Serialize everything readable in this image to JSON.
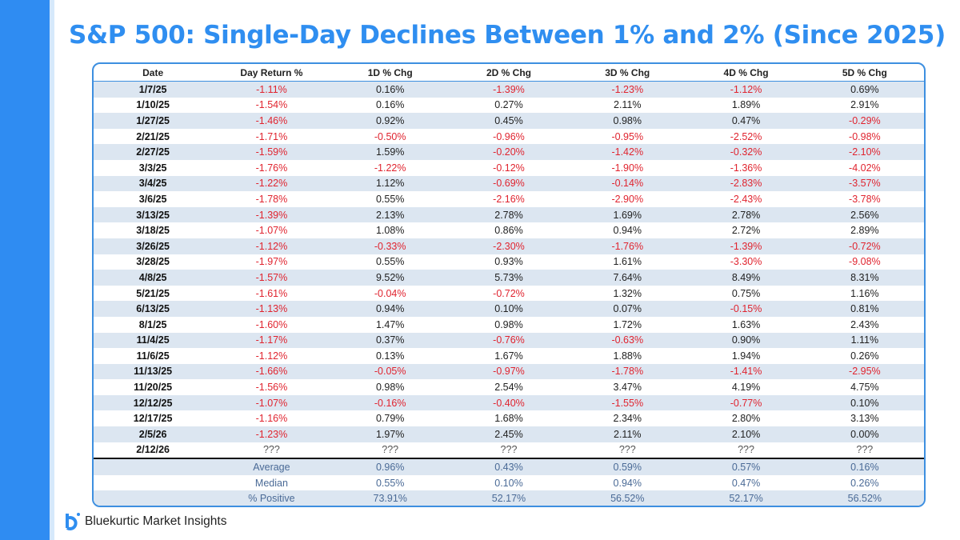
{
  "title": "S&P 500: Single-Day Declines Between 1% and 2% (Since 2025)",
  "brand": "Bluekurtic Market Insights",
  "colors": {
    "accent": "#2f8ef0",
    "negative": "#e0242f",
    "stripe": "#dce6f1",
    "summary": "#4a6a96"
  },
  "chart_data": {
    "type": "table",
    "columns": [
      "Date",
      "Day Return %",
      "1D % Chg",
      "2D % Chg",
      "3D % Chg",
      "4D % Chg",
      "5D % Chg"
    ],
    "rows": [
      [
        "1/7/25",
        "-1.11%",
        "0.16%",
        "-1.39%",
        "-1.23%",
        "-1.12%",
        "0.69%"
      ],
      [
        "1/10/25",
        "-1.54%",
        "0.16%",
        "0.27%",
        "2.11%",
        "1.89%",
        "2.91%"
      ],
      [
        "1/27/25",
        "-1.46%",
        "0.92%",
        "0.45%",
        "0.98%",
        "0.47%",
        "-0.29%"
      ],
      [
        "2/21/25",
        "-1.71%",
        "-0.50%",
        "-0.96%",
        "-0.95%",
        "-2.52%",
        "-0.98%"
      ],
      [
        "2/27/25",
        "-1.59%",
        "1.59%",
        "-0.20%",
        "-1.42%",
        "-0.32%",
        "-2.10%"
      ],
      [
        "3/3/25",
        "-1.76%",
        "-1.22%",
        "-0.12%",
        "-1.90%",
        "-1.36%",
        "-4.02%"
      ],
      [
        "3/4/25",
        "-1.22%",
        "1.12%",
        "-0.69%",
        "-0.14%",
        "-2.83%",
        "-3.57%"
      ],
      [
        "3/6/25",
        "-1.78%",
        "0.55%",
        "-2.16%",
        "-2.90%",
        "-2.43%",
        "-3.78%"
      ],
      [
        "3/13/25",
        "-1.39%",
        "2.13%",
        "2.78%",
        "1.69%",
        "2.78%",
        "2.56%"
      ],
      [
        "3/18/25",
        "-1.07%",
        "1.08%",
        "0.86%",
        "0.94%",
        "2.72%",
        "2.89%"
      ],
      [
        "3/26/25",
        "-1.12%",
        "-0.33%",
        "-2.30%",
        "-1.76%",
        "-1.39%",
        "-0.72%"
      ],
      [
        "3/28/25",
        "-1.97%",
        "0.55%",
        "0.93%",
        "1.61%",
        "-3.30%",
        "-9.08%"
      ],
      [
        "4/8/25",
        "-1.57%",
        "9.52%",
        "5.73%",
        "7.64%",
        "8.49%",
        "8.31%"
      ],
      [
        "5/21/25",
        "-1.61%",
        "-0.04%",
        "-0.72%",
        "1.32%",
        "0.75%",
        "1.16%"
      ],
      [
        "6/13/25",
        "-1.13%",
        "0.94%",
        "0.10%",
        "0.07%",
        "-0.15%",
        "0.81%"
      ],
      [
        "8/1/25",
        "-1.60%",
        "1.47%",
        "0.98%",
        "1.72%",
        "1.63%",
        "2.43%"
      ],
      [
        "11/4/25",
        "-1.17%",
        "0.37%",
        "-0.76%",
        "-0.63%",
        "0.90%",
        "1.11%"
      ],
      [
        "11/6/25",
        "-1.12%",
        "0.13%",
        "1.67%",
        "1.88%",
        "1.94%",
        "0.26%"
      ],
      [
        "11/13/25",
        "-1.66%",
        "-0.05%",
        "-0.97%",
        "-1.78%",
        "-1.41%",
        "-2.95%"
      ],
      [
        "11/20/25",
        "-1.56%",
        "0.98%",
        "2.54%",
        "3.47%",
        "4.19%",
        "4.75%"
      ],
      [
        "12/12/25",
        "-1.07%",
        "-0.16%",
        "-0.40%",
        "-1.55%",
        "-0.77%",
        "0.10%"
      ],
      [
        "12/17/25",
        "-1.16%",
        "0.79%",
        "1.68%",
        "2.34%",
        "2.80%",
        "3.13%"
      ],
      [
        "2/5/26",
        "-1.23%",
        "1.97%",
        "2.45%",
        "2.11%",
        "2.10%",
        "0.00%"
      ],
      [
        "2/12/26",
        "???",
        "???",
        "???",
        "???",
        "???",
        "???"
      ]
    ],
    "summary": [
      [
        "Average",
        "0.96%",
        "0.43%",
        "0.59%",
        "0.57%",
        "0.16%"
      ],
      [
        "Median",
        "0.55%",
        "0.10%",
        "0.94%",
        "0.47%",
        "0.26%"
      ],
      [
        "% Positive",
        "73.91%",
        "52.17%",
        "56.52%",
        "52.17%",
        "56.52%"
      ]
    ]
  }
}
